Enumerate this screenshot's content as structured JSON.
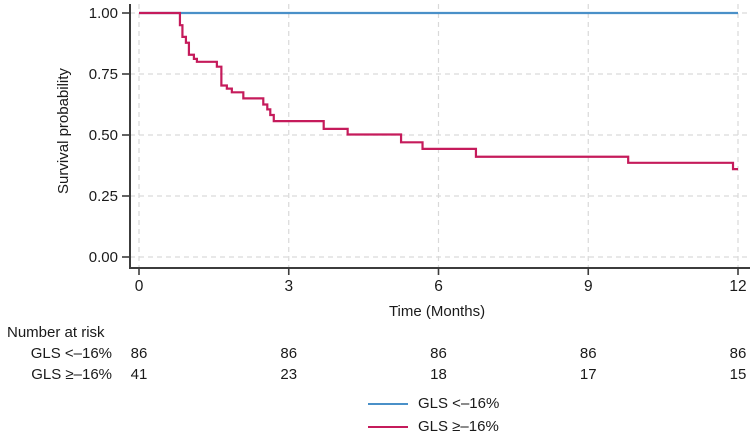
{
  "chart_data": {
    "type": "line",
    "subtype": "kaplan-meier-step",
    "title": "",
    "xlabel": "Time (Months)",
    "ylabel": "Survival probability",
    "xlim": [
      0,
      12
    ],
    "ylim": [
      0.0,
      1.0
    ],
    "x_ticks": [
      0,
      3,
      6,
      9,
      12
    ],
    "y_ticks": [
      1.0,
      0.75,
      0.5,
      0.25,
      0.0
    ],
    "y_tick_labels": [
      "1.00",
      "0.75",
      "0.50",
      "0.25",
      "0.00"
    ],
    "grid": "dashed-both-axes",
    "legend_position": "bottom",
    "series": [
      {
        "name": "GLS <–16%",
        "color": "#4a90c8",
        "points": [
          [
            0,
            1.0
          ],
          [
            12,
            1.0
          ]
        ]
      },
      {
        "name": "GLS ≥–16%",
        "color": "#c51b5b",
        "points": [
          [
            0,
            1.0
          ],
          [
            0.82,
            0.95
          ],
          [
            0.87,
            0.902
          ],
          [
            0.94,
            0.878
          ],
          [
            1.0,
            0.829
          ],
          [
            1.1,
            0.812
          ],
          [
            1.16,
            0.8
          ],
          [
            1.56,
            0.78
          ],
          [
            1.65,
            0.703
          ],
          [
            1.76,
            0.69
          ],
          [
            1.86,
            0.675
          ],
          [
            2.09,
            0.65
          ],
          [
            2.49,
            0.625
          ],
          [
            2.57,
            0.605
          ],
          [
            2.63,
            0.582
          ],
          [
            2.7,
            0.557
          ],
          [
            3.7,
            0.525
          ],
          [
            4.18,
            0.502
          ],
          [
            5.25,
            0.47
          ],
          [
            5.68,
            0.443
          ],
          [
            6.75,
            0.411
          ],
          [
            9.8,
            0.386
          ],
          [
            11.9,
            0.36
          ],
          [
            12.0,
            0.36
          ]
        ]
      }
    ],
    "risk_table": {
      "title": "Number at risk",
      "time_points": [
        0,
        3,
        6,
        9,
        12
      ],
      "rows": [
        {
          "label": "GLS <–16%",
          "values": [
            "86",
            "86",
            "86",
            "86",
            "86"
          ]
        },
        {
          "label": "GLS ≥–16%",
          "values": [
            "41",
            "23",
            "18",
            "17",
            "15"
          ]
        }
      ]
    },
    "legend": [
      {
        "label": "GLS <–16%",
        "color": "#4a90c8"
      },
      {
        "label": "GLS ≥–16%",
        "color": "#c51b5b"
      }
    ],
    "style": {
      "axis_color": "#3c3c3c",
      "text_color": "#1a1a1a",
      "gridline_color": "#d9d9d9",
      "background": "#ffffff"
    }
  }
}
